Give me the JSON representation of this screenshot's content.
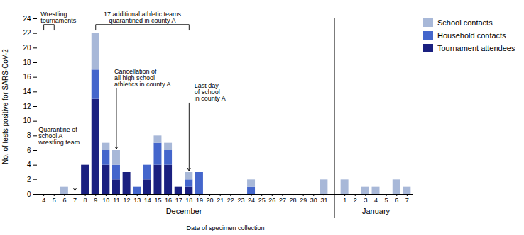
{
  "chart_data": {
    "type": "bar",
    "stacked": true,
    "categories": [
      "4",
      "5",
      "6",
      "7",
      "8",
      "9",
      "10",
      "11",
      "12",
      "13",
      "14",
      "15",
      "16",
      "17",
      "18",
      "19",
      "20",
      "21",
      "22",
      "23",
      "24",
      "25",
      "26",
      "27",
      "28",
      "29",
      "30",
      "31",
      "1",
      "2",
      "3",
      "4",
      "5",
      "6",
      "7"
    ],
    "series": [
      {
        "name": "Tournament attendees",
        "color": "#1a2080",
        "values": [
          0,
          0,
          0,
          0,
          4,
          13,
          4,
          2,
          3,
          0,
          2,
          4,
          4,
          1,
          1,
          0,
          0,
          0,
          0,
          0,
          0,
          0,
          0,
          0,
          0,
          0,
          0,
          0,
          0,
          0,
          0,
          0,
          0,
          0,
          0
        ]
      },
      {
        "name": "Household contacts",
        "color": "#4466cc",
        "values": [
          0,
          0,
          0,
          0,
          0,
          4,
          2,
          2,
          0,
          1,
          2,
          3,
          2,
          0,
          1,
          3,
          0,
          0,
          0,
          0,
          1,
          0,
          0,
          0,
          0,
          0,
          0,
          0,
          0,
          0,
          0,
          0,
          0,
          0,
          0
        ]
      },
      {
        "name": "School contacts",
        "color": "#a8b8d8",
        "values": [
          0,
          0,
          1,
          0,
          0,
          5,
          1,
          2,
          0,
          0,
          0,
          1,
          1,
          0,
          1,
          0,
          0,
          0,
          0,
          0,
          1,
          0,
          0,
          0,
          0,
          0,
          0,
          2,
          2,
          0,
          1,
          1,
          0,
          2,
          1
        ]
      }
    ],
    "xlabel": "Date of specimen collection",
    "ylabel": "No. of tests positive for SARS-CoV-2",
    "ylim": [
      0,
      24
    ],
    "yticks": [
      0,
      2,
      4,
      6,
      8,
      10,
      12,
      14,
      16,
      18,
      20,
      22,
      24
    ],
    "grid": false,
    "legend": "right",
    "annotations": [
      "December",
      "January",
      "Wrestling\ntournaments",
      "Quarantine of\nschool A\nwrestling team",
      "17 additional athletic teams\nquarantined in county A",
      "Cancellation of\nall high school\nathletics in county A",
      "Last day\nof school\nin county A"
    ]
  }
}
